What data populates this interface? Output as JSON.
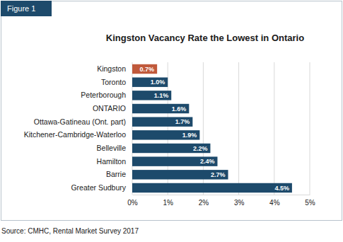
{
  "figure_label": "Figure 1",
  "source": "Source: CMHC, Rental Market Survey 2017",
  "chart_data": {
    "type": "bar",
    "orientation": "horizontal",
    "title": "Kingston Vacancy Rate the Lowest in Ontario",
    "categories": [
      "Kingston",
      "Toronto",
      "Peterborough",
      "ONTARIO",
      "Ottawa-Gatineau (Ont. part)",
      "Kitchener-Cambridge-Waterloo",
      "Belleville",
      "Hamilton",
      "Barrie",
      "Greater Sudbury"
    ],
    "values": [
      0.7,
      1.0,
      1.1,
      1.6,
      1.7,
      1.9,
      2.2,
      2.4,
      2.7,
      4.5
    ],
    "value_labels": [
      "0.7%",
      "1.0%",
      "1.1%",
      "1.6%",
      "1.7%",
      "1.9%",
      "2.2%",
      "2.4%",
      "2.7%",
      "4.5%"
    ],
    "colors": [
      "#c0593b",
      "#1d4a6b",
      "#1d4a6b",
      "#1d4a6b",
      "#1d4a6b",
      "#1d4a6b",
      "#1d4a6b",
      "#1d4a6b",
      "#1d4a6b",
      "#1d4a6b"
    ],
    "data_labels": true,
    "grid": true,
    "xlim": [
      0,
      5
    ],
    "xticks": [
      {
        "value": 0,
        "label": "0%"
      },
      {
        "value": 1,
        "label": "1%"
      },
      {
        "value": 2,
        "label": "2%"
      },
      {
        "value": 3,
        "label": "3%"
      },
      {
        "value": 4,
        "label": "4%"
      },
      {
        "value": 5,
        "label": "5%"
      }
    ]
  }
}
